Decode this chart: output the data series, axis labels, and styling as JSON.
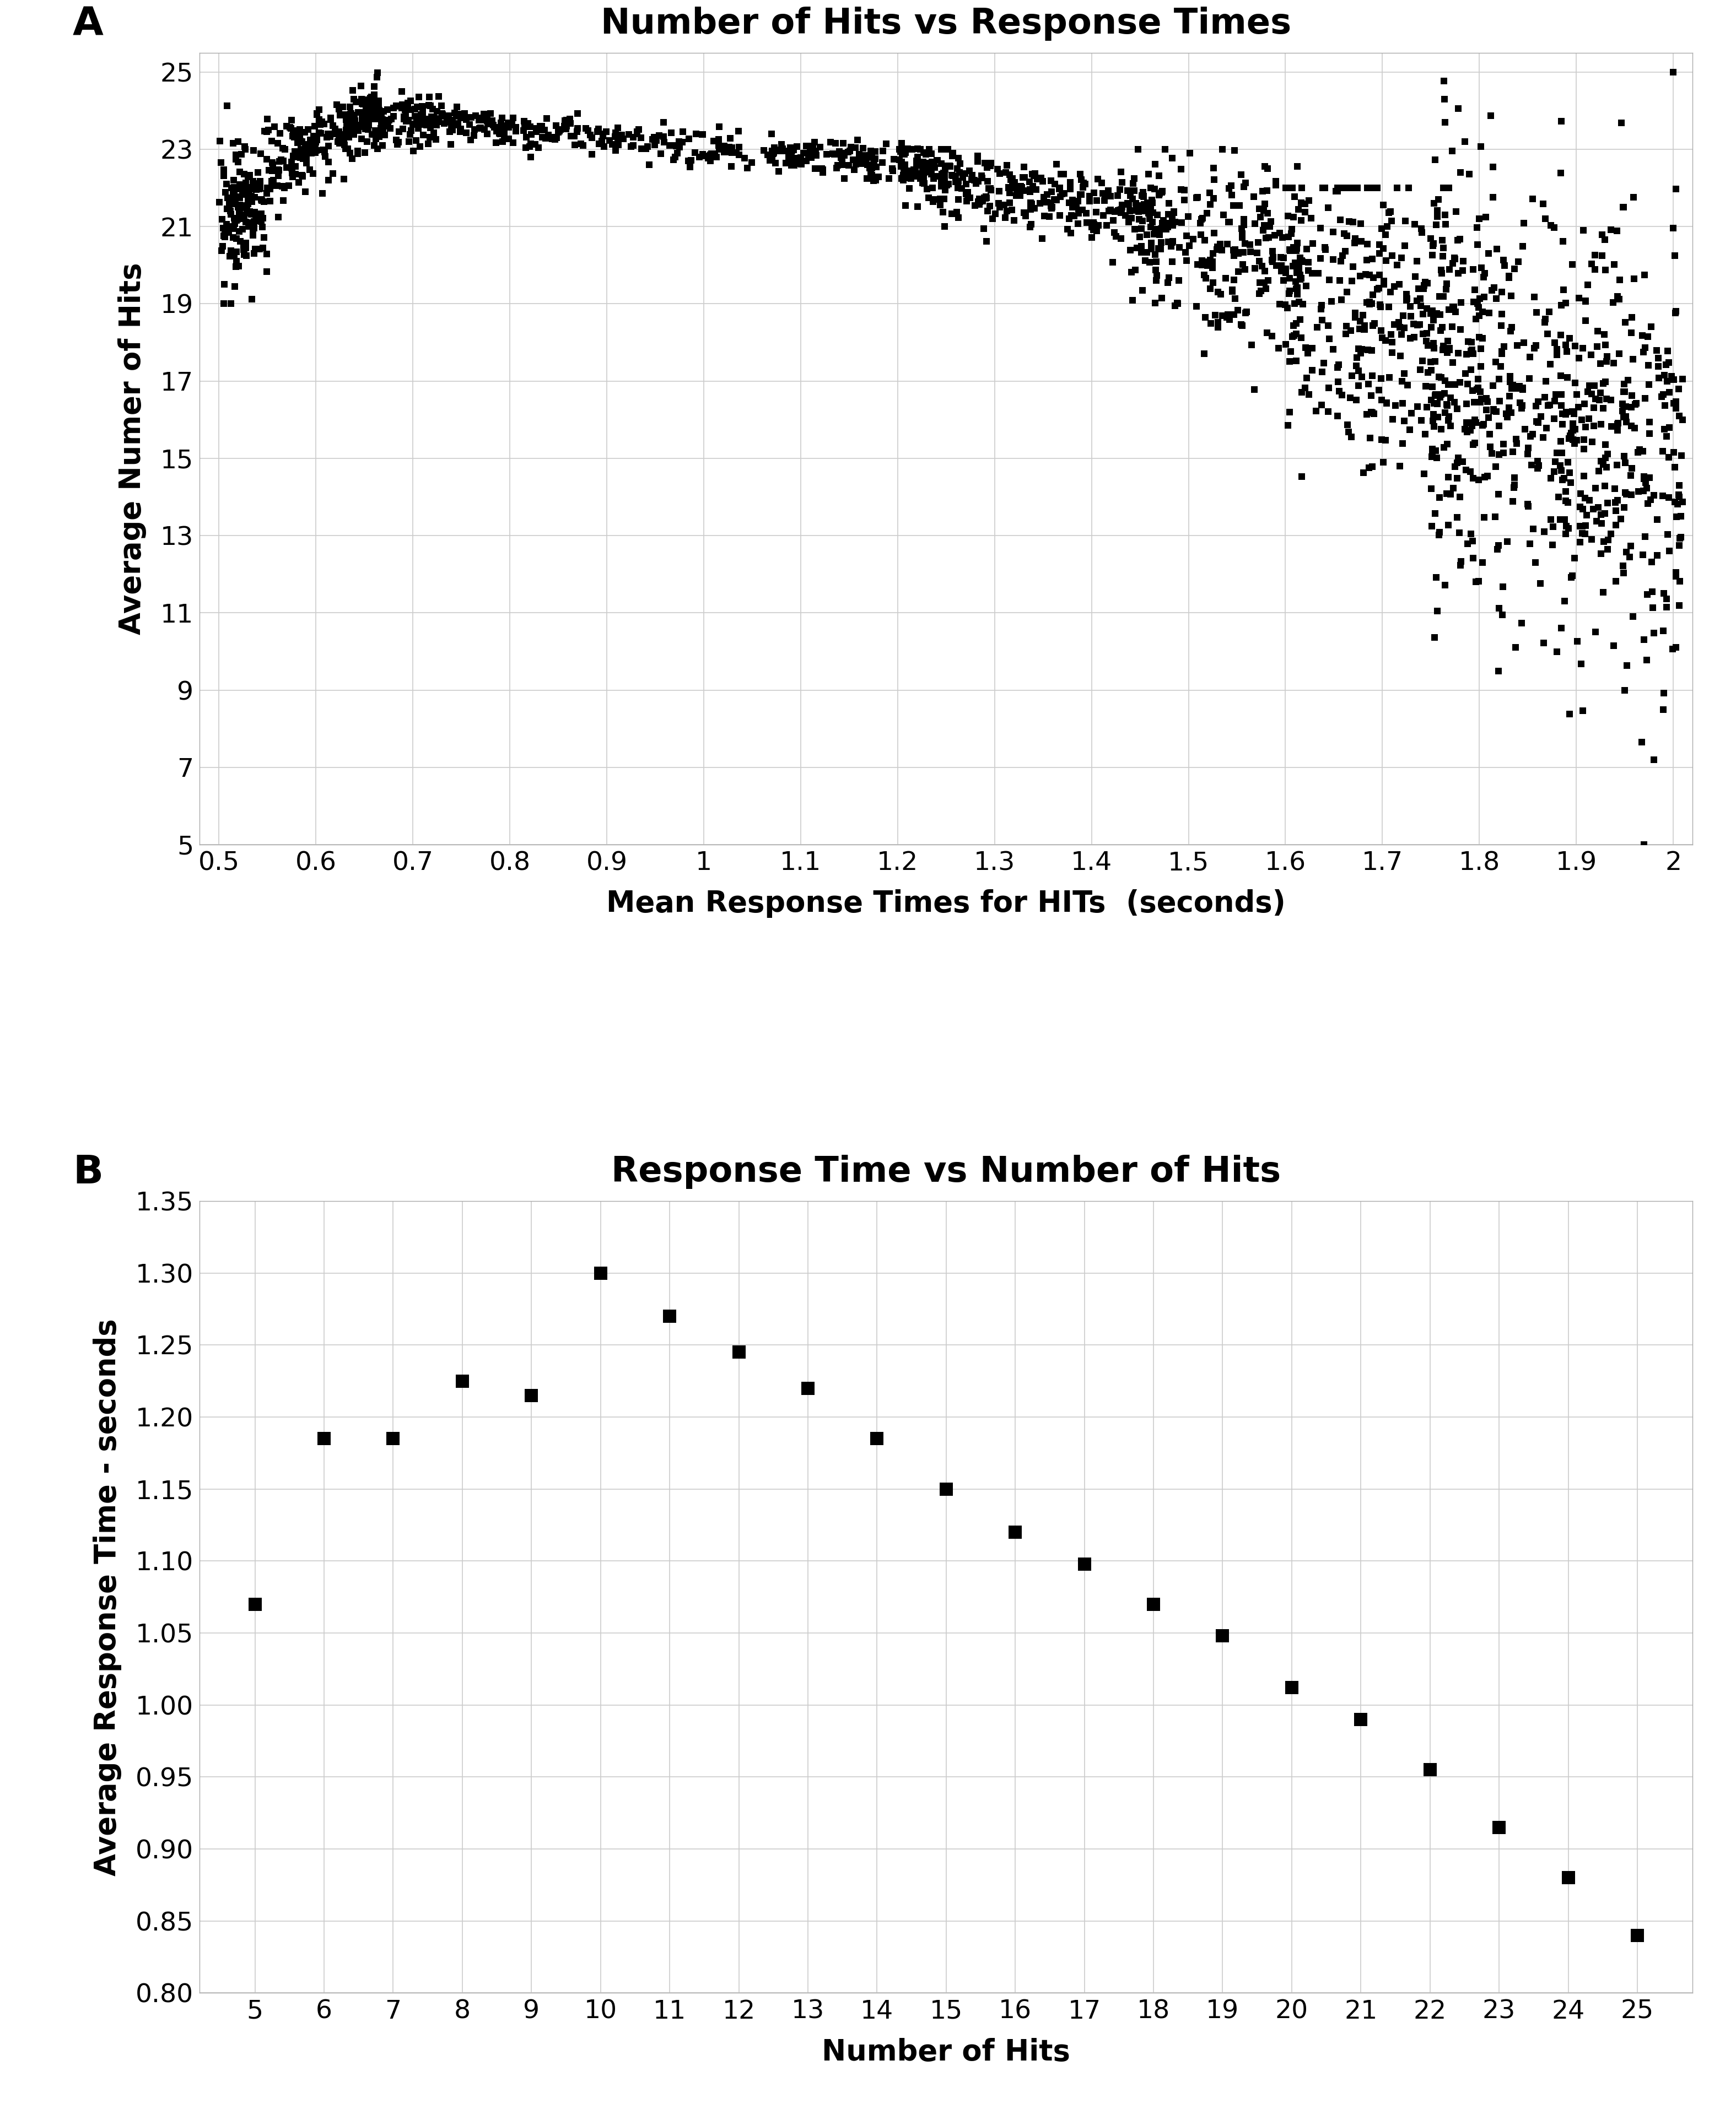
{
  "plot_A": {
    "title": "Number of Hits vs Response Times",
    "xlabel": "Mean Response Times for HITs  (seconds)",
    "ylabel": "Average Numer of Hits",
    "xlim": [
      0.48,
      2.02
    ],
    "ylim": [
      5,
      25.5
    ],
    "xticks": [
      0.5,
      0.6,
      0.7,
      0.8,
      0.9,
      1.0,
      1.1,
      1.2,
      1.3,
      1.4,
      1.5,
      1.6,
      1.7,
      1.8,
      1.9,
      2.0
    ],
    "xtick_labels": [
      "0.5",
      "0.6",
      "0.7",
      "0.8",
      "0.9",
      "1",
      "1.1",
      "1.2",
      "1.3",
      "1.4",
      "1.5",
      "1.6",
      "1.7",
      "1.8",
      "1.9",
      "2"
    ],
    "yticks": [
      5,
      7,
      9,
      11,
      13,
      15,
      17,
      19,
      21,
      23,
      25
    ],
    "label": "A"
  },
  "plot_B": {
    "title": "Response Time vs Number of Hits",
    "xlabel": "Number of Hits",
    "ylabel": "Average Response Time - seconds",
    "xlim": [
      4.2,
      25.8
    ],
    "ylim": [
      0.8,
      1.35
    ],
    "xticks": [
      5,
      6,
      7,
      8,
      9,
      10,
      11,
      12,
      13,
      14,
      15,
      16,
      17,
      18,
      19,
      20,
      21,
      22,
      23,
      24,
      25
    ],
    "yticks": [
      0.8,
      0.85,
      0.9,
      0.95,
      1.0,
      1.05,
      1.1,
      1.15,
      1.2,
      1.25,
      1.3,
      1.35
    ],
    "x": [
      5,
      6,
      7,
      8,
      9,
      10,
      11,
      12,
      13,
      14,
      15,
      16,
      17,
      18,
      19,
      20,
      21,
      22,
      23,
      24,
      25
    ],
    "y": [
      1.07,
      1.185,
      1.185,
      1.225,
      1.215,
      1.3,
      1.27,
      1.245,
      1.22,
      1.185,
      1.15,
      1.12,
      1.098,
      1.07,
      1.048,
      1.012,
      0.99,
      0.955,
      0.915,
      0.88,
      0.84
    ],
    "label": "B"
  },
  "background_color": "#ffffff",
  "grid_color": "#cccccc",
  "marker_color": "#000000",
  "title_fontsize": 46,
  "label_fontsize": 38,
  "tick_fontsize": 34,
  "panel_label_fontsize": 52
}
